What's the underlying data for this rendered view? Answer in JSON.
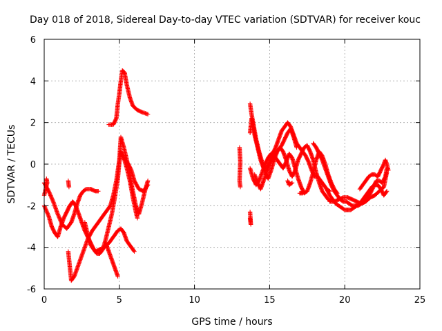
{
  "chart_data": {
    "type": "scatter",
    "title": "Day 018 of 2018, Sidereal Day-to-day VTEC variation (SDTVAR) for receiver kouc",
    "xlabel": "GPS time / hours",
    "ylabel": "SDTVAR / TECUs",
    "xlim": [
      0,
      25
    ],
    "ylim": [
      -6,
      6
    ],
    "xticks": [
      0,
      5,
      10,
      15,
      20,
      25
    ],
    "yticks": [
      -6,
      -4,
      -2,
      0,
      2,
      4,
      6
    ],
    "xtick_labels": [
      "0",
      "5",
      "10",
      "15",
      "20",
      "25"
    ],
    "ytick_labels": [
      "-6",
      "-4",
      "-2",
      "0",
      "2",
      "4",
      "6"
    ],
    "grid": true,
    "marker": "+",
    "color": "#ff0000",
    "tracks": [
      [
        [
          0.0,
          -0.9
        ],
        [
          0.3,
          -1.3
        ],
        [
          0.6,
          -1.8
        ],
        [
          0.9,
          -2.4
        ],
        [
          1.2,
          -2.9
        ],
        [
          1.5,
          -3.1
        ],
        [
          1.8,
          -2.8
        ],
        [
          2.0,
          -2.4
        ],
        [
          2.2,
          -1.9
        ],
        [
          2.4,
          -1.5
        ],
        [
          2.6,
          -1.3
        ],
        [
          2.8,
          -1.2
        ],
        [
          3.1,
          -1.2
        ],
        [
          3.4,
          -1.3
        ],
        [
          3.6,
          -1.3
        ]
      ],
      [
        [
          0.0,
          -2.0
        ],
        [
          0.3,
          -2.5
        ],
        [
          0.5,
          -3.0
        ],
        [
          0.7,
          -3.3
        ],
        [
          0.9,
          -3.5
        ],
        [
          1.1,
          -3.0
        ],
        [
          1.3,
          -2.6
        ],
        [
          1.5,
          -2.3
        ],
        [
          1.7,
          -2.0
        ],
        [
          1.9,
          -1.8
        ],
        [
          2.1,
          -2.0
        ],
        [
          2.3,
          -2.4
        ],
        [
          2.5,
          -2.8
        ],
        [
          2.7,
          -3.2
        ],
        [
          2.9,
          -3.5
        ],
        [
          3.1,
          -3.8
        ],
        [
          3.3,
          -4.1
        ],
        [
          3.5,
          -4.3
        ],
        [
          3.7,
          -4.3
        ],
        [
          3.9,
          -4.1
        ],
        [
          4.1,
          -3.6
        ],
        [
          4.3,
          -3.0
        ],
        [
          4.5,
          -2.4
        ],
        [
          4.7,
          -1.6
        ],
        [
          4.9,
          -0.7
        ],
        [
          5.0,
          0.1
        ],
        [
          5.1,
          0.6
        ],
        [
          5.2,
          0.4
        ],
        [
          5.4,
          0.2
        ],
        [
          5.6,
          0.0
        ],
        [
          5.8,
          -0.3
        ],
        [
          6.0,
          -0.8
        ],
        [
          6.3,
          -1.2
        ],
        [
          6.6,
          -1.3
        ],
        [
          6.9,
          -1.0
        ]
      ],
      [
        [
          1.6,
          -4.2
        ],
        [
          1.8,
          -5.6
        ],
        [
          2.0,
          -5.4
        ],
        [
          2.3,
          -4.8
        ],
        [
          2.6,
          -4.2
        ],
        [
          2.9,
          -3.6
        ],
        [
          3.2,
          -3.2
        ],
        [
          3.5,
          -2.9
        ],
        [
          3.8,
          -2.6
        ],
        [
          4.1,
          -2.3
        ],
        [
          4.4,
          -2.0
        ],
        [
          4.6,
          -1.5
        ],
        [
          4.8,
          -0.8
        ],
        [
          5.0,
          0.2
        ],
        [
          5.1,
          1.3
        ],
        [
          5.3,
          0.8
        ],
        [
          5.5,
          0.2
        ],
        [
          5.7,
          -0.5
        ],
        [
          5.9,
          -1.3
        ],
        [
          6.1,
          -2.0
        ],
        [
          6.3,
          -2.4
        ],
        [
          6.5,
          -1.9
        ],
        [
          6.7,
          -1.3
        ],
        [
          6.9,
          -0.8
        ]
      ],
      [
        [
          2.7,
          -2.8
        ],
        [
          2.9,
          -3.4
        ],
        [
          3.1,
          -3.9
        ],
        [
          3.4,
          -4.2
        ],
        [
          3.7,
          -4.1
        ],
        [
          4.0,
          -4.0
        ],
        [
          4.3,
          -3.8
        ],
        [
          4.6,
          -3.5
        ],
        [
          4.9,
          -3.2
        ],
        [
          5.1,
          -3.1
        ],
        [
          5.3,
          -3.3
        ],
        [
          5.5,
          -3.7
        ],
        [
          5.8,
          -4.0
        ],
        [
          6.0,
          -4.2
        ]
      ],
      [
        [
          4.1,
          -3.8
        ],
        [
          4.3,
          -4.2
        ],
        [
          4.5,
          -4.6
        ],
        [
          4.7,
          -5.0
        ],
        [
          4.9,
          -5.4
        ]
      ],
      [
        [
          5.1,
          0.6
        ],
        [
          5.3,
          0.3
        ],
        [
          5.5,
          -0.2
        ],
        [
          5.7,
          -0.8
        ],
        [
          5.9,
          -1.6
        ],
        [
          6.1,
          -2.3
        ],
        [
          6.2,
          -2.6
        ]
      ],
      [
        [
          4.3,
          1.9
        ],
        [
          4.6,
          1.9
        ],
        [
          4.8,
          2.2
        ],
        [
          4.9,
          2.9
        ],
        [
          5.0,
          3.4
        ],
        [
          5.1,
          4.0
        ],
        [
          5.2,
          4.5
        ],
        [
          5.35,
          4.4
        ],
        [
          5.5,
          3.8
        ],
        [
          5.7,
          3.2
        ],
        [
          5.9,
          2.8
        ],
        [
          6.2,
          2.6
        ],
        [
          6.5,
          2.5
        ],
        [
          6.9,
          2.4
        ]
      ],
      [
        [
          0.0,
          -1.5
        ],
        [
          0.1,
          -1.2
        ],
        [
          0.2,
          -0.9
        ],
        [
          0.15,
          -0.7
        ]
      ],
      [
        [
          1.6,
          -0.8
        ],
        [
          1.65,
          -1.1
        ]
      ],
      [
        [
          13.0,
          0.8
        ],
        [
          13.05,
          0.1
        ],
        [
          13.0,
          -0.8
        ],
        [
          13.05,
          -1.1
        ]
      ],
      [
        [
          13.7,
          -2.6
        ],
        [
          13.75,
          -2.9
        ],
        [
          13.7,
          -2.3
        ]
      ],
      [
        [
          13.7,
          1.5
        ],
        [
          13.8,
          2.2
        ],
        [
          13.9,
          1.9
        ],
        [
          14.0,
          1.4
        ],
        [
          14.2,
          0.8
        ],
        [
          14.4,
          0.2
        ],
        [
          14.6,
          -0.2
        ],
        [
          14.8,
          -0.2
        ],
        [
          15.0,
          0.1
        ],
        [
          15.2,
          0.5
        ],
        [
          15.4,
          0.8
        ],
        [
          15.6,
          1.2
        ],
        [
          15.8,
          1.6
        ],
        [
          16.0,
          1.8
        ],
        [
          16.2,
          2.0
        ],
        [
          16.4,
          1.8
        ],
        [
          16.6,
          1.4
        ],
        [
          16.8,
          1.0
        ],
        [
          17.0,
          0.8
        ],
        [
          17.2,
          0.6
        ],
        [
          17.4,
          0.4
        ],
        [
          17.6,
          0.1
        ],
        [
          17.8,
          -0.3
        ],
        [
          18.0,
          -0.6
        ],
        [
          18.2,
          -0.6
        ],
        [
          18.4,
          -0.8
        ],
        [
          18.6,
          -1.0
        ],
        [
          18.8,
          -1.2
        ],
        [
          19.0,
          -1.3
        ]
      ],
      [
        [
          13.7,
          2.9
        ],
        [
          13.8,
          2.4
        ],
        [
          13.9,
          2.0
        ],
        [
          14.1,
          1.2
        ],
        [
          14.3,
          0.6
        ],
        [
          14.5,
          0.1
        ],
        [
          14.7,
          -0.4
        ],
        [
          14.9,
          -0.7
        ],
        [
          15.1,
          -0.3
        ],
        [
          15.3,
          0.2
        ],
        [
          15.5,
          0.6
        ],
        [
          15.7,
          0.8
        ],
        [
          15.9,
          0.6
        ],
        [
          16.1,
          0.2
        ],
        [
          16.3,
          -0.3
        ],
        [
          16.5,
          -0.6
        ],
        [
          16.7,
          -0.3
        ],
        [
          16.9,
          0.2
        ],
        [
          17.1,
          0.5
        ],
        [
          17.3,
          0.8
        ],
        [
          17.5,
          0.9
        ],
        [
          17.7,
          0.6
        ],
        [
          17.9,
          0.2
        ],
        [
          18.1,
          -0.4
        ],
        [
          18.3,
          -0.9
        ],
        [
          18.5,
          -1.3
        ],
        [
          18.7,
          -1.5
        ],
        [
          18.9,
          -1.7
        ],
        [
          19.1,
          -1.8
        ]
      ],
      [
        [
          13.7,
          -0.2
        ],
        [
          13.9,
          -0.7
        ],
        [
          14.1,
          -1.0
        ],
        [
          14.3,
          -0.8
        ],
        [
          14.5,
          -0.4
        ],
        [
          14.7,
          0.0
        ],
        [
          14.9,
          0.3
        ],
        [
          15.1,
          0.5
        ],
        [
          15.3,
          0.4
        ],
        [
          15.5,
          0.2
        ],
        [
          15.7,
          0.0
        ],
        [
          15.9,
          -0.2
        ],
        [
          16.1,
          0.1
        ],
        [
          16.3,
          0.5
        ],
        [
          16.5,
          0.3
        ],
        [
          16.7,
          -0.2
        ],
        [
          16.9,
          -0.7
        ],
        [
          17.1,
          -1.1
        ],
        [
          17.3,
          -1.4
        ],
        [
          17.5,
          -1.3
        ],
        [
          17.7,
          -0.9
        ],
        [
          17.9,
          -0.4
        ],
        [
          18.1,
          0.2
        ],
        [
          18.3,
          0.6
        ],
        [
          18.5,
          0.4
        ],
        [
          18.7,
          0.0
        ],
        [
          18.9,
          -0.5
        ],
        [
          19.1,
          -0.9
        ],
        [
          19.3,
          -1.2
        ],
        [
          19.5,
          -1.4
        ]
      ],
      [
        [
          14.0,
          -0.5
        ],
        [
          14.2,
          -0.9
        ],
        [
          14.4,
          -1.2
        ],
        [
          14.6,
          -0.8
        ],
        [
          14.8,
          -0.4
        ],
        [
          15.0,
          0.0
        ],
        [
          15.2,
          0.3
        ],
        [
          15.4,
          0.5
        ],
        [
          15.6,
          0.7
        ],
        [
          15.8,
          0.9
        ],
        [
          16.0,
          1.2
        ],
        [
          16.2,
          1.5
        ],
        [
          16.4,
          1.7
        ],
        [
          16.6,
          1.3
        ],
        [
          16.8,
          0.8
        ]
      ],
      [
        [
          16.2,
          -0.8
        ],
        [
          16.3,
          -1.0
        ],
        [
          16.5,
          -0.9
        ]
      ],
      [
        [
          17.0,
          -1.4
        ],
        [
          17.2,
          -1.4
        ],
        [
          17.3,
          -1.3
        ]
      ],
      [
        [
          17.9,
          1.0
        ],
        [
          18.1,
          0.8
        ],
        [
          18.3,
          0.5
        ],
        [
          18.5,
          0.2
        ],
        [
          18.7,
          -0.2
        ],
        [
          18.9,
          -0.6
        ],
        [
          19.1,
          -1.0
        ],
        [
          19.3,
          -1.3
        ],
        [
          19.5,
          -1.5
        ],
        [
          19.7,
          -1.7
        ],
        [
          19.9,
          -1.8
        ],
        [
          20.1,
          -1.8
        ],
        [
          20.3,
          -1.9
        ],
        [
          20.5,
          -2.0
        ],
        [
          20.7,
          -2.0
        ],
        [
          20.9,
          -2.0
        ],
        [
          21.1,
          -1.9
        ],
        [
          21.3,
          -1.8
        ],
        [
          21.5,
          -1.6
        ],
        [
          21.7,
          -1.4
        ],
        [
          21.9,
          -1.1
        ],
        [
          22.1,
          -0.8
        ],
        [
          22.3,
          -0.8
        ],
        [
          22.5,
          -0.9
        ],
        [
          22.7,
          -0.6
        ],
        [
          22.8,
          -0.2
        ]
      ],
      [
        [
          18.8,
          -1.2
        ],
        [
          19.0,
          -1.5
        ],
        [
          19.2,
          -1.7
        ],
        [
          19.4,
          -1.9
        ],
        [
          19.6,
          -2.0
        ],
        [
          19.8,
          -2.1
        ],
        [
          20.0,
          -2.2
        ],
        [
          20.2,
          -2.2
        ],
        [
          20.4,
          -2.2
        ],
        [
          20.6,
          -2.1
        ],
        [
          20.8,
          -2.0
        ],
        [
          21.0,
          -1.9
        ],
        [
          21.2,
          -1.7
        ],
        [
          21.4,
          -1.5
        ],
        [
          21.6,
          -1.3
        ],
        [
          21.8,
          -1.1
        ],
        [
          22.0,
          -1.0
        ],
        [
          22.2,
          -1.0
        ],
        [
          22.4,
          -1.2
        ],
        [
          22.6,
          -1.5
        ],
        [
          22.8,
          -1.3
        ]
      ],
      [
        [
          19.0,
          -1.8
        ],
        [
          19.3,
          -1.8
        ],
        [
          19.6,
          -1.7
        ],
        [
          19.9,
          -1.6
        ],
        [
          20.2,
          -1.6
        ],
        [
          20.5,
          -1.7
        ],
        [
          20.8,
          -1.8
        ],
        [
          21.1,
          -1.9
        ],
        [
          21.4,
          -1.8
        ],
        [
          21.7,
          -1.6
        ],
        [
          22.0,
          -1.5
        ],
        [
          22.3,
          -1.3
        ],
        [
          22.6,
          -1.1
        ],
        [
          22.8,
          -0.4
        ]
      ],
      [
        [
          21.0,
          -1.2
        ],
        [
          21.2,
          -1.0
        ],
        [
          21.4,
          -0.8
        ],
        [
          21.6,
          -0.6
        ],
        [
          21.8,
          -0.5
        ],
        [
          22.0,
          -0.5
        ],
        [
          22.2,
          -0.6
        ],
        [
          22.4,
          -0.3
        ],
        [
          22.6,
          0.0
        ],
        [
          22.7,
          0.2
        ],
        [
          22.8,
          0.0
        ],
        [
          22.9,
          -0.3
        ]
      ]
    ]
  }
}
